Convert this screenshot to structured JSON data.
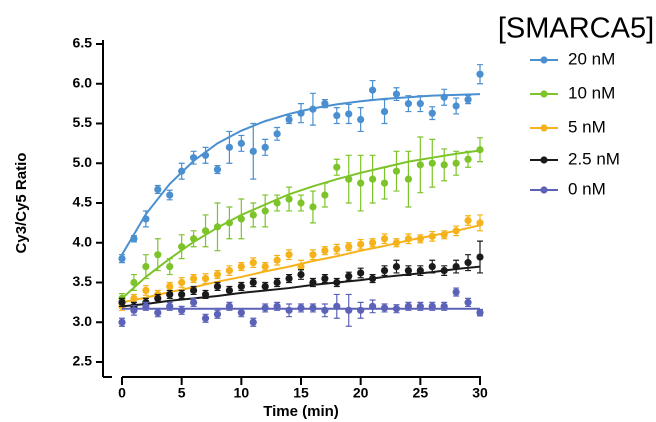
{
  "chart_data": {
    "type": "scatter",
    "xlabel": "Time (min)",
    "ylabel": "Cy3/Cy5 Ratio",
    "legend_title": "[SMARCA5]",
    "legend": "right",
    "xlim": [
      0,
      30
    ],
    "ylim": [
      2.5,
      6.5
    ],
    "xticks": [
      0,
      5,
      10,
      15,
      20,
      25,
      30
    ],
    "yticks": [
      2.5,
      {
        "value": 3,
        "label": "3.0"
      },
      3.5,
      {
        "value": 4,
        "label": "4.0"
      },
      4.5,
      {
        "value": 5,
        "label": "5.0"
      },
      5.5,
      {
        "value": 6,
        "label": "6.0"
      },
      6.5
    ],
    "x": [
      0,
      1,
      2,
      3,
      4,
      5,
      6,
      7,
      8,
      9,
      10,
      11,
      12,
      13,
      14,
      15,
      16,
      17,
      18,
      19,
      20,
      21,
      22,
      23,
      24,
      25,
      26,
      27,
      28,
      29,
      30
    ],
    "fit_x": [
      0,
      2,
      4,
      6,
      8,
      10,
      12,
      14,
      16,
      18,
      20,
      22,
      24,
      26,
      28,
      30
    ],
    "series": [
      {
        "name": "20 nM",
        "color": "#4a8fcf",
        "values": [
          3.8,
          4.05,
          4.3,
          4.67,
          4.6,
          4.9,
          5.07,
          5.1,
          4.92,
          5.2,
          5.25,
          5.15,
          5.2,
          5.37,
          5.55,
          5.63,
          5.68,
          5.75,
          5.6,
          5.62,
          5.55,
          5.92,
          5.65,
          5.87,
          5.75,
          5.75,
          5.63,
          5.83,
          5.72,
          5.8,
          6.12
        ],
        "errors": [
          0.05,
          0.04,
          0.1,
          0.05,
          0.06,
          0.1,
          0.08,
          0.1,
          0.05,
          0.2,
          0.1,
          0.35,
          0.1,
          0.08,
          0.05,
          0.12,
          0.2,
          0.05,
          0.1,
          0.12,
          0.15,
          0.12,
          0.15,
          0.08,
          0.1,
          0.1,
          0.08,
          0.1,
          0.1,
          0.05,
          0.12
        ],
        "fit": [
          3.85,
          4.36,
          4.74,
          5.03,
          5.25,
          5.41,
          5.53,
          5.62,
          5.69,
          5.74,
          5.78,
          5.81,
          5.83,
          5.85,
          5.86,
          5.87
        ]
      },
      {
        "name": "10 nM",
        "color": "#7dc42a",
        "values": [
          3.3,
          3.5,
          3.7,
          3.85,
          3.7,
          3.95,
          4.05,
          4.15,
          4.2,
          4.25,
          4.3,
          4.35,
          4.4,
          4.5,
          4.55,
          4.5,
          4.45,
          4.6,
          4.95,
          4.8,
          4.75,
          4.8,
          4.75,
          4.9,
          4.8,
          4.98,
          5.0,
          4.98,
          5.0,
          5.05,
          5.17
        ],
        "errors": [
          0.06,
          0.1,
          0.15,
          0.2,
          0.1,
          0.15,
          0.1,
          0.2,
          0.3,
          0.2,
          0.25,
          0.15,
          0.2,
          0.1,
          0.15,
          0.1,
          0.2,
          0.15,
          0.1,
          0.3,
          0.35,
          0.3,
          0.2,
          0.25,
          0.35,
          0.35,
          0.3,
          0.2,
          0.15,
          0.1,
          0.15
        ],
        "fit": [
          3.3,
          3.57,
          3.8,
          4.01,
          4.19,
          4.35,
          4.48,
          4.61,
          4.71,
          4.8,
          4.88,
          4.95,
          5.02,
          5.07,
          5.12,
          5.16
        ]
      },
      {
        "name": "5 nM",
        "color": "#f5b21b",
        "values": [
          3.2,
          3.3,
          3.4,
          3.35,
          3.45,
          3.5,
          3.55,
          3.55,
          3.6,
          3.65,
          3.7,
          3.75,
          3.7,
          3.78,
          3.85,
          3.7,
          3.85,
          3.9,
          3.92,
          3.95,
          3.98,
          4.0,
          4.05,
          4.0,
          4.05,
          4.05,
          4.08,
          4.1,
          4.15,
          4.28,
          4.25
        ],
        "errors": [
          0.05,
          0.05,
          0.06,
          0.05,
          0.05,
          0.06,
          0.05,
          0.06,
          0.05,
          0.06,
          0.05,
          0.06,
          0.05,
          0.06,
          0.06,
          0.08,
          0.06,
          0.05,
          0.06,
          0.05,
          0.06,
          0.05,
          0.06,
          0.05,
          0.06,
          0.05,
          0.06,
          0.05,
          0.06,
          0.06,
          0.1
        ],
        "fit": [
          3.25,
          3.31,
          3.38,
          3.44,
          3.51,
          3.57,
          3.64,
          3.7,
          3.77,
          3.83,
          3.9,
          3.96,
          4.03,
          4.09,
          4.15,
          4.22
        ]
      },
      {
        "name": "2.5 nM",
        "color": "#1a1a1a",
        "values": [
          3.25,
          3.2,
          3.25,
          3.3,
          3.35,
          3.35,
          3.4,
          3.35,
          3.45,
          3.4,
          3.45,
          3.5,
          3.45,
          3.5,
          3.55,
          3.6,
          3.5,
          3.55,
          3.5,
          3.58,
          3.62,
          3.55,
          3.65,
          3.7,
          3.65,
          3.65,
          3.7,
          3.65,
          3.7,
          3.75,
          3.82
        ],
        "errors": [
          0.05,
          0.05,
          0.05,
          0.05,
          0.05,
          0.05,
          0.05,
          0.05,
          0.05,
          0.05,
          0.05,
          0.05,
          0.05,
          0.05,
          0.05,
          0.06,
          0.05,
          0.05,
          0.05,
          0.05,
          0.06,
          0.05,
          0.06,
          0.08,
          0.06,
          0.06,
          0.08,
          0.06,
          0.08,
          0.1,
          0.2
        ],
        "fit": [
          3.2,
          3.23,
          3.27,
          3.3,
          3.33,
          3.37,
          3.4,
          3.43,
          3.47,
          3.5,
          3.53,
          3.57,
          3.6,
          3.63,
          3.67,
          3.7
        ]
      },
      {
        "name": "0 nM",
        "color": "#5b62b8",
        "values": [
          3.0,
          3.15,
          3.2,
          3.12,
          3.2,
          3.15,
          3.25,
          3.05,
          3.1,
          3.2,
          3.12,
          3.0,
          3.18,
          3.2,
          3.15,
          3.18,
          3.18,
          3.15,
          3.2,
          3.15,
          3.15,
          3.2,
          3.18,
          3.17,
          3.2,
          3.2,
          3.2,
          3.2,
          3.38,
          3.25,
          3.12
        ],
        "errors": [
          0.05,
          0.06,
          0.05,
          0.05,
          0.05,
          0.05,
          0.05,
          0.05,
          0.05,
          0.05,
          0.05,
          0.05,
          0.05,
          0.05,
          0.08,
          0.05,
          0.05,
          0.08,
          0.15,
          0.2,
          0.1,
          0.08,
          0.05,
          0.05,
          0.05,
          0.05,
          0.05,
          0.05,
          0.05,
          0.05,
          0.04
        ],
        "fit": [
          3.17,
          3.17,
          3.17,
          3.17,
          3.17,
          3.17,
          3.17,
          3.17,
          3.17,
          3.17,
          3.17,
          3.17,
          3.17,
          3.17,
          3.17,
          3.17
        ]
      }
    ]
  }
}
